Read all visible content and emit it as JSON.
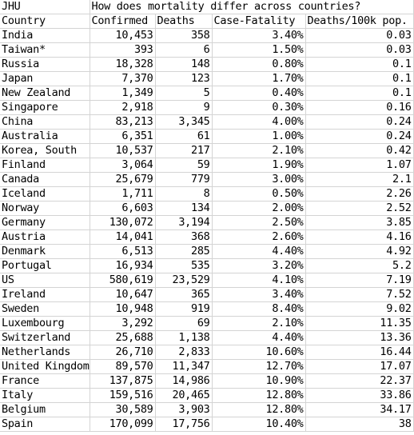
{
  "sheet": {
    "source_label": "JHU",
    "title": "How does mortality differ across countries?",
    "headers": [
      "Country",
      "Confirmed",
      "Deaths",
      "Case-Fatality",
      "Deaths/100k pop."
    ],
    "rows": [
      {
        "country": "India",
        "confirmed": "10,453",
        "deaths": "358",
        "cfr": "3.40%",
        "per100k": "0.03"
      },
      {
        "country": "Taiwan*",
        "confirmed": "393",
        "deaths": "6",
        "cfr": "1.50%",
        "per100k": "0.03"
      },
      {
        "country": "Russia",
        "confirmed": "18,328",
        "deaths": "148",
        "cfr": "0.80%",
        "per100k": "0.1"
      },
      {
        "country": "Japan",
        "confirmed": "7,370",
        "deaths": "123",
        "cfr": "1.70%",
        "per100k": "0.1"
      },
      {
        "country": "New Zealand",
        "confirmed": "1,349",
        "deaths": "5",
        "cfr": "0.40%",
        "per100k": "0.1"
      },
      {
        "country": "Singapore",
        "confirmed": "2,918",
        "deaths": "9",
        "cfr": "0.30%",
        "per100k": "0.16"
      },
      {
        "country": "China",
        "confirmed": "83,213",
        "deaths": "3,345",
        "cfr": "4.00%",
        "per100k": "0.24"
      },
      {
        "country": "Australia",
        "confirmed": "6,351",
        "deaths": "61",
        "cfr": "1.00%",
        "per100k": "0.24"
      },
      {
        "country": "Korea, South",
        "confirmed": "10,537",
        "deaths": "217",
        "cfr": "2.10%",
        "per100k": "0.42"
      },
      {
        "country": "Finland",
        "confirmed": "3,064",
        "deaths": "59",
        "cfr": "1.90%",
        "per100k": "1.07"
      },
      {
        "country": "Canada",
        "confirmed": "25,679",
        "deaths": "779",
        "cfr": "3.00%",
        "per100k": "2.1"
      },
      {
        "country": "Iceland",
        "confirmed": "1,711",
        "deaths": "8",
        "cfr": "0.50%",
        "per100k": "2.26"
      },
      {
        "country": "Norway",
        "confirmed": "6,603",
        "deaths": "134",
        "cfr": "2.00%",
        "per100k": "2.52"
      },
      {
        "country": "Germany",
        "confirmed": "130,072",
        "deaths": "3,194",
        "cfr": "2.50%",
        "per100k": "3.85"
      },
      {
        "country": "Austria",
        "confirmed": "14,041",
        "deaths": "368",
        "cfr": "2.60%",
        "per100k": "4.16"
      },
      {
        "country": "Denmark",
        "confirmed": "6,513",
        "deaths": "285",
        "cfr": "4.40%",
        "per100k": "4.92"
      },
      {
        "country": "Portugal",
        "confirmed": "16,934",
        "deaths": "535",
        "cfr": "3.20%",
        "per100k": "5.2"
      },
      {
        "country": "US",
        "confirmed": "580,619",
        "deaths": "23,529",
        "cfr": "4.10%",
        "per100k": "7.19"
      },
      {
        "country": "Ireland",
        "confirmed": "10,647",
        "deaths": "365",
        "cfr": "3.40%",
        "per100k": "7.52"
      },
      {
        "country": "Sweden",
        "confirmed": "10,948",
        "deaths": "919",
        "cfr": "8.40%",
        "per100k": "9.02"
      },
      {
        "country": "Luxembourg",
        "confirmed": "3,292",
        "deaths": "69",
        "cfr": "2.10%",
        "per100k": "11.35"
      },
      {
        "country": "Switzerland",
        "confirmed": "25,688",
        "deaths": "1,138",
        "cfr": "4.40%",
        "per100k": "13.36"
      },
      {
        "country": "Netherlands",
        "confirmed": "26,710",
        "deaths": "2,833",
        "cfr": "10.60%",
        "per100k": "16.44"
      },
      {
        "country": "United Kingdom",
        "confirmed": "89,570",
        "deaths": "11,347",
        "cfr": "12.70%",
        "per100k": "17.07"
      },
      {
        "country": "France",
        "confirmed": "137,875",
        "deaths": "14,986",
        "cfr": "10.90%",
        "per100k": "22.37"
      },
      {
        "country": "Italy",
        "confirmed": "159,516",
        "deaths": "20,465",
        "cfr": "12.80%",
        "per100k": "33.86"
      },
      {
        "country": "Belgium",
        "confirmed": "30,589",
        "deaths": "3,903",
        "cfr": "12.80%",
        "per100k": "34.17"
      },
      {
        "country": "Spain",
        "confirmed": "170,099",
        "deaths": "17,756",
        "cfr": "10.40%",
        "per100k": "38"
      }
    ]
  }
}
